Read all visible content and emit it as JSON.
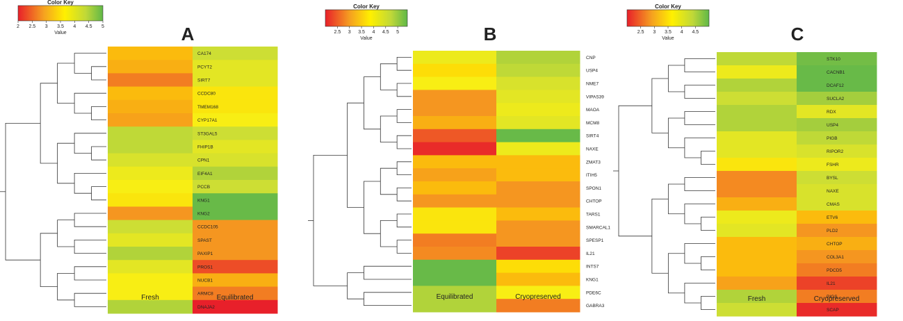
{
  "chart_data": [
    {
      "type": "heatmap",
      "panel_label": "A",
      "key": {
        "title": "Color Key",
        "axis_label": "Value",
        "range": [
          2,
          5
        ],
        "ticks": [
          "2",
          "2.5",
          "3",
          "3.5",
          "4",
          "4.5",
          "5"
        ]
      },
      "columns": [
        "Fresh",
        "Equilibrated"
      ],
      "rows": [
        {
          "gene": "CA174",
          "values": [
            3.3,
            4.2
          ]
        },
        {
          "gene": "PCYT2",
          "values": [
            3.2,
            4.0
          ]
        },
        {
          "gene": "SIRT7",
          "values": [
            2.8,
            4.0
          ]
        },
        {
          "gene": "CCDC80",
          "values": [
            3.3,
            3.7
          ]
        },
        {
          "gene": "TMEM168",
          "values": [
            3.2,
            3.7
          ]
        },
        {
          "gene": "CYP17A1",
          "values": [
            3.1,
            3.8
          ]
        },
        {
          "gene": "ST3GAL5",
          "values": [
            4.3,
            4.2
          ]
        },
        {
          "gene": "FHIP1B",
          "values": [
            4.3,
            4.0
          ]
        },
        {
          "gene": "CPN1",
          "values": [
            4.1,
            4.1
          ]
        },
        {
          "gene": "EIF4A1",
          "values": [
            3.9,
            4.4
          ]
        },
        {
          "gene": "PCCB",
          "values": [
            3.8,
            4.2
          ]
        },
        {
          "gene": "KNG1",
          "values": [
            3.7,
            5.0
          ]
        },
        {
          "gene": "KNG2",
          "values": [
            3.0,
            5.0
          ]
        },
        {
          "gene": "CCDC105",
          "values": [
            4.2,
            3.0
          ]
        },
        {
          "gene": "SPAST",
          "values": [
            4.0,
            3.0
          ]
        },
        {
          "gene": "PAXIP1",
          "values": [
            4.4,
            3.0
          ]
        },
        {
          "gene": "PROS1",
          "values": [
            4.0,
            2.4
          ]
        },
        {
          "gene": "NUCB1",
          "values": [
            3.8,
            3.2
          ]
        },
        {
          "gene": "ARMC8",
          "values": [
            3.8,
            2.8
          ]
        },
        {
          "gene": "DNAJA2",
          "values": [
            4.4,
            2.0
          ]
        }
      ]
    },
    {
      "type": "heatmap",
      "panel_label": "B",
      "key": {
        "title": "Color Key",
        "axis_label": "Value",
        "range": [
          2,
          5.4
        ],
        "ticks": [
          "2.5",
          "3",
          "3.5",
          "4",
          "4.5",
          "5"
        ]
      },
      "columns": [
        "Equilibrated",
        "Cryopreserved"
      ],
      "rows": [
        {
          "gene": "CNP",
          "values": [
            3.9,
            4.4
          ]
        },
        {
          "gene": "USP4",
          "values": [
            3.6,
            4.3
          ]
        },
        {
          "gene": "NME7",
          "values": [
            3.8,
            4.1
          ]
        },
        {
          "gene": "VIPAS39",
          "values": [
            3.0,
            4.0
          ]
        },
        {
          "gene": "MAOA",
          "values": [
            3.0,
            3.9
          ]
        },
        {
          "gene": "MCM8",
          "values": [
            3.2,
            4.0
          ]
        },
        {
          "gene": "SIRT4",
          "values": [
            2.5,
            5.0
          ]
        },
        {
          "gene": "NAXE",
          "values": [
            2.1,
            3.9
          ]
        },
        {
          "gene": "ZMAT3",
          "values": [
            3.3,
            3.3
          ]
        },
        {
          "gene": "ITIH5",
          "values": [
            3.1,
            3.3
          ]
        },
        {
          "gene": "SPON1",
          "values": [
            3.3,
            3.0
          ]
        },
        {
          "gene": "CHTOP",
          "values": [
            3.0,
            3.0
          ]
        },
        {
          "gene": "TARS1",
          "values": [
            3.7,
            3.3
          ]
        },
        {
          "gene": "SMARCAL1",
          "values": [
            3.7,
            3.0
          ]
        },
        {
          "gene": "SPESP1",
          "values": [
            2.8,
            3.0
          ]
        },
        {
          "gene": "IL21",
          "values": [
            2.9,
            2.3
          ]
        },
        {
          "gene": "INTS7",
          "values": [
            5.0,
            3.6
          ]
        },
        {
          "gene": "KNG1",
          "values": [
            5.0,
            3.3
          ]
        },
        {
          "gene": "PDE6C",
          "values": [
            4.4,
            3.8
          ]
        },
        {
          "gene": "GABRA3",
          "values": [
            4.4,
            2.8
          ]
        }
      ]
    },
    {
      "type": "heatmap",
      "panel_label": "C",
      "key": {
        "title": "Color Key",
        "axis_label": "Value",
        "range": [
          2,
          5
        ],
        "ticks": [
          "2.5",
          "3",
          "3.5",
          "4",
          "4.5"
        ]
      },
      "columns": [
        "Fresh",
        "Cryopreserved"
      ],
      "rows": [
        {
          "gene": "STK10",
          "values": [
            4.3,
            4.9
          ]
        },
        {
          "gene": "CACNB1",
          "values": [
            3.9,
            5.0
          ]
        },
        {
          "gene": "DCAF12",
          "values": [
            4.4,
            5.0
          ]
        },
        {
          "gene": "SUCLA2",
          "values": [
            4.2,
            4.5
          ]
        },
        {
          "gene": "RDX",
          "values": [
            4.4,
            4.0
          ]
        },
        {
          "gene": "USP4",
          "values": [
            4.4,
            4.5
          ]
        },
        {
          "gene": "PIGB",
          "values": [
            4.0,
            4.3
          ]
        },
        {
          "gene": "RIPOR2",
          "values": [
            4.0,
            4.1
          ]
        },
        {
          "gene": "FSHR",
          "values": [
            3.7,
            3.9
          ]
        },
        {
          "gene": "BYSL",
          "values": [
            2.9,
            4.2
          ]
        },
        {
          "gene": "NAXE",
          "values": [
            2.9,
            4.1
          ]
        },
        {
          "gene": "CMAS",
          "values": [
            3.2,
            4.1
          ]
        },
        {
          "gene": "ETV6",
          "values": [
            3.9,
            3.3
          ]
        },
        {
          "gene": "PLD2",
          "values": [
            4.0,
            3.0
          ]
        },
        {
          "gene": "CHTOP",
          "values": [
            3.3,
            3.2
          ]
        },
        {
          "gene": "COL3A1",
          "values": [
            3.3,
            3.0
          ]
        },
        {
          "gene": "PDCD5",
          "values": [
            3.3,
            2.8
          ]
        },
        {
          "gene": "IL21",
          "values": [
            3.1,
            2.3
          ]
        },
        {
          "gene": "PIGS",
          "values": [
            4.4,
            2.8
          ]
        },
        {
          "gene": "SCAP",
          "values": [
            4.2,
            2.1
          ]
        }
      ]
    }
  ]
}
